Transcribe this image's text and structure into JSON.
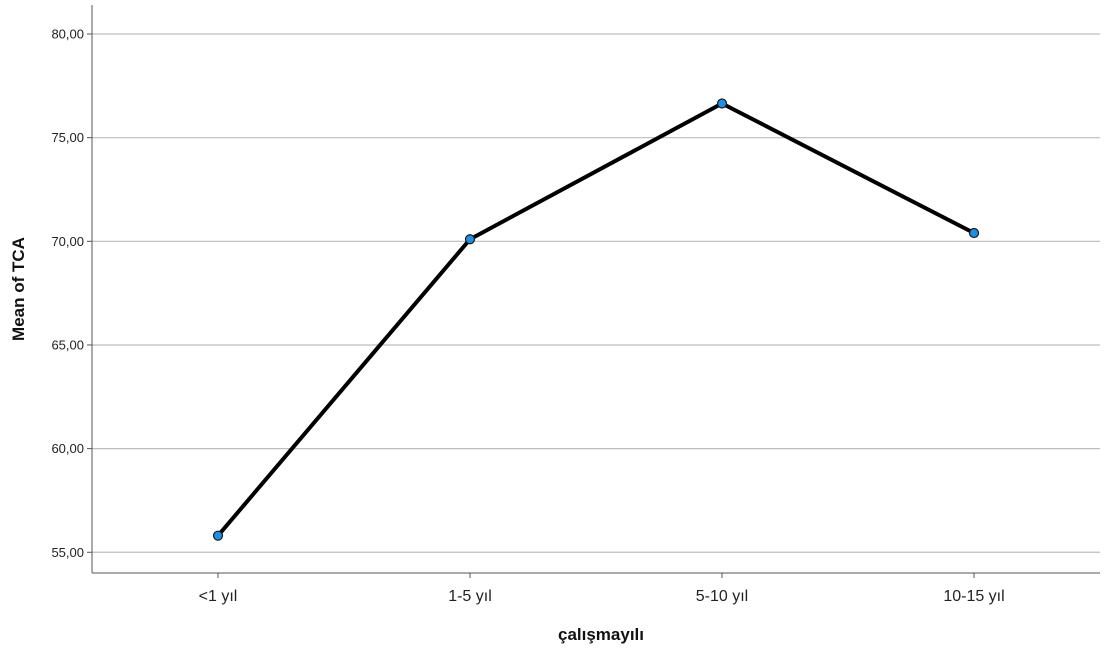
{
  "chart_data": {
    "type": "line",
    "categories": [
      "<1 yıl",
      "1-5 yıl",
      "5-10 yıl",
      "10-15 yıl"
    ],
    "series": [
      {
        "values": [
          55.8,
          70.1,
          76.65,
          70.4
        ]
      }
    ],
    "yticks": [
      "55,00",
      "60,00",
      "65,00",
      "70,00",
      "75,00",
      "80,00"
    ],
    "ytick_values": [
      55,
      60,
      65,
      70,
      75,
      80
    ],
    "xlabel": "çalışmayılı",
    "ylabel": "Mean of TCA",
    "ylim": [
      54,
      81.4
    ],
    "grid": true,
    "line_color": "#000000",
    "marker_color": "#1f8fe6"
  }
}
